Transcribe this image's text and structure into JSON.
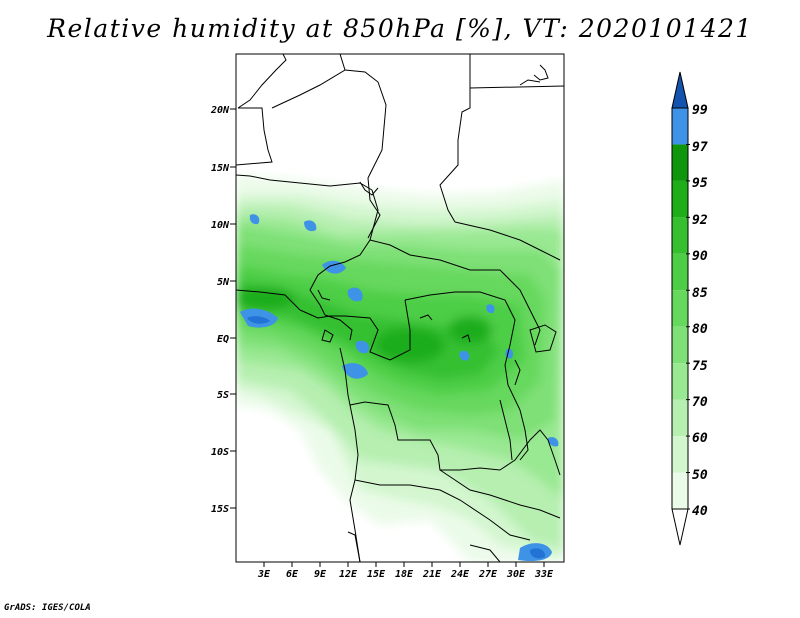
{
  "title": "Relative humidity at 850hPa [%], VT: 2020101421",
  "credit": "GrADS: IGES/COLA",
  "map": {
    "lat_ticks": [
      "20N",
      "15N",
      "10N",
      "5N",
      "EQ",
      "5S",
      "10S",
      "15S"
    ],
    "lon_ticks": [
      "3E",
      "6E",
      "9E",
      "12E",
      "15E",
      "18E",
      "21E",
      "24E",
      "27E",
      "30E",
      "33E"
    ]
  },
  "colorbar": {
    "levels": [
      "40",
      "50",
      "60",
      "70",
      "75",
      "80",
      "85",
      "90",
      "92",
      "95",
      "97",
      "99"
    ],
    "colors": [
      "#ebfbe9",
      "#d3f6cf",
      "#b6efb0",
      "#99e892",
      "#7ee076",
      "#66d85d",
      "#4ece46",
      "#36c030",
      "#1fad1a",
      "#0f960d",
      "#3f93e6",
      "#2273d4",
      "#1453b0"
    ]
  }
}
